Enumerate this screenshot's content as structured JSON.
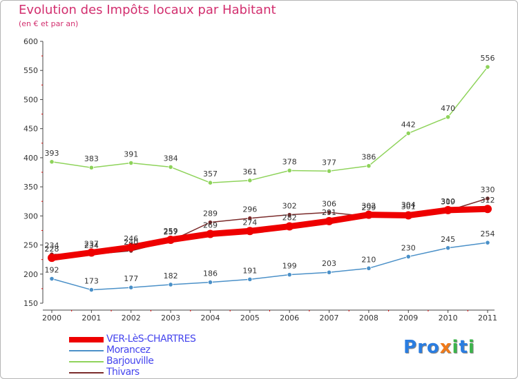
{
  "title": "Evolution des Impôts locaux par Habitant",
  "subtitle": "(en € et par an)",
  "logo": {
    "letters": [
      "P",
      "r",
      "o",
      "x",
      "i",
      "t",
      "i"
    ],
    "colors": [
      "#2a7de1",
      "#2a7de1",
      "#2a7de1",
      "#f07a1a",
      "#3cb44b",
      "#2a7de1",
      "#3cb44b"
    ]
  },
  "chart_data": {
    "type": "line",
    "title": "Evolution des Impôts locaux par Habitant",
    "subtitle": "(en € et par an)",
    "x": [
      "2000",
      "2001",
      "2002",
      "2003",
      "2004",
      "2005",
      "2006",
      "2007",
      "2008",
      "2009",
      "2010",
      "2011"
    ],
    "ylim": [
      150,
      600
    ],
    "yticks": [
      150,
      200,
      250,
      300,
      350,
      400,
      450,
      500,
      550,
      600
    ],
    "grid": false,
    "legend_position": "bottom-left",
    "series": [
      {
        "name": "VER-LèS-CHARTRES",
        "color": "#ee0000",
        "values": [
          228,
          237,
          246,
          259,
          269,
          274,
          282,
          291,
          302,
          301,
          310,
          312
        ]
      },
      {
        "name": "Morancez",
        "color": "#4a90c8",
        "values": [
          192,
          173,
          177,
          182,
          186,
          191,
          199,
          203,
          210,
          230,
          245,
          254
        ]
      },
      {
        "name": "Barjouville",
        "color": "#8ed35a",
        "values": [
          393,
          383,
          391,
          384,
          357,
          361,
          378,
          377,
          386,
          442,
          470,
          556
        ]
      },
      {
        "name": "Thivars",
        "color": "#7a2a2a",
        "values": [
          234,
          234,
          240,
          257,
          289,
          296,
          302,
          306,
          299,
          304,
          309,
          330
        ]
      }
    ],
    "data_labels": [
      {
        "series": 0,
        "labels": [
          "228",
          "237",
          "246",
          "259",
          "269",
          "274",
          "282",
          "291",
          "302",
          "301",
          "310",
          "312"
        ]
      },
      {
        "series": 1,
        "labels": [
          "192",
          "173",
          "177",
          "182",
          "186",
          "191",
          "199",
          "203",
          "210",
          "230",
          "245",
          "254"
        ]
      },
      {
        "series": 2,
        "labels": [
          "393",
          "383",
          "391",
          "384",
          "357",
          "361",
          "378",
          "377",
          "386",
          "442",
          "470",
          "556"
        ]
      },
      {
        "series": 3,
        "labels": [
          "234",
          "234",
          "240",
          "257",
          "289",
          "296",
          "302",
          "306",
          "299",
          "304",
          "309",
          "330"
        ]
      }
    ]
  }
}
